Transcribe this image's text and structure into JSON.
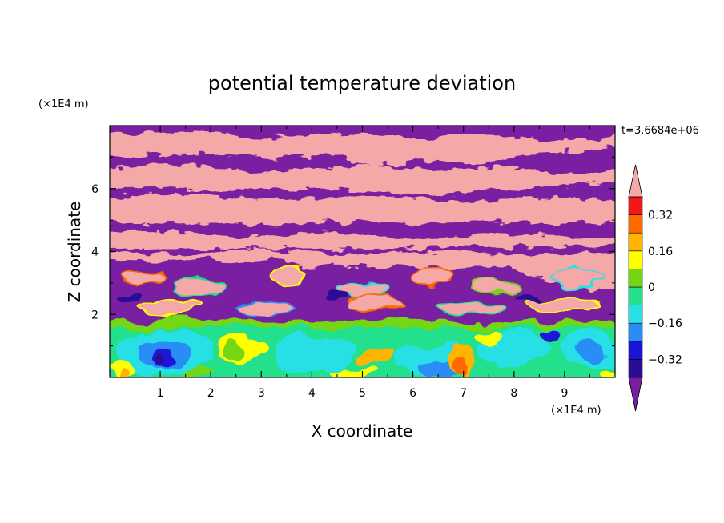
{
  "chart_data": {
    "type": "heatmap",
    "title": "potential temperature deviation",
    "xlabel": "X coordinate",
    "ylabel": "Z coordinate",
    "x_unit": "(×1E4 m)",
    "y_unit": "(×1E4 m)",
    "time_label": "t=3.6684e+06",
    "xlim": [
      0,
      10
    ],
    "ylim": [
      0,
      8
    ],
    "x_ticks": [
      "1",
      "2",
      "3",
      "4",
      "5",
      "6",
      "7",
      "8",
      "9"
    ],
    "y_ticks": [
      "2",
      "4",
      "6"
    ],
    "colorbar": {
      "levels": [
        -0.4,
        -0.32,
        -0.24,
        -0.16,
        -0.08,
        0,
        0.08,
        0.16,
        0.24,
        0.32,
        0.4
      ],
      "labels": [
        "0.32",
        "0.16",
        "0",
        "−0.16",
        "−0.32"
      ],
      "label_values": [
        0.32,
        0.16,
        0,
        -0.16,
        -0.32
      ],
      "colors_bottom_to_top": [
        "#7a1fa2",
        "#2c0c94",
        "#1a14d6",
        "#2a8cf5",
        "#28e0e6",
        "#22e08c",
        "#74d612",
        "#ffff00",
        "#ffb400",
        "#ff6a00",
        "#f01818",
        "#f5a8a8"
      ],
      "under_color": "#7a1fa2",
      "over_color": "#f5a8a8"
    },
    "layers": [
      {
        "z_range": [
          0,
          1.8
        ],
        "regime": "turbulent mixed layer (green/cyan/yellow, blue cores)"
      },
      {
        "z_range": [
          1.8,
          4.0
        ],
        "regime": "cellular structures, pink over purple with colored edges"
      },
      {
        "z_range": [
          4.0,
          8.0
        ],
        "regime": "alternating pink and purple bands"
      }
    ]
  }
}
